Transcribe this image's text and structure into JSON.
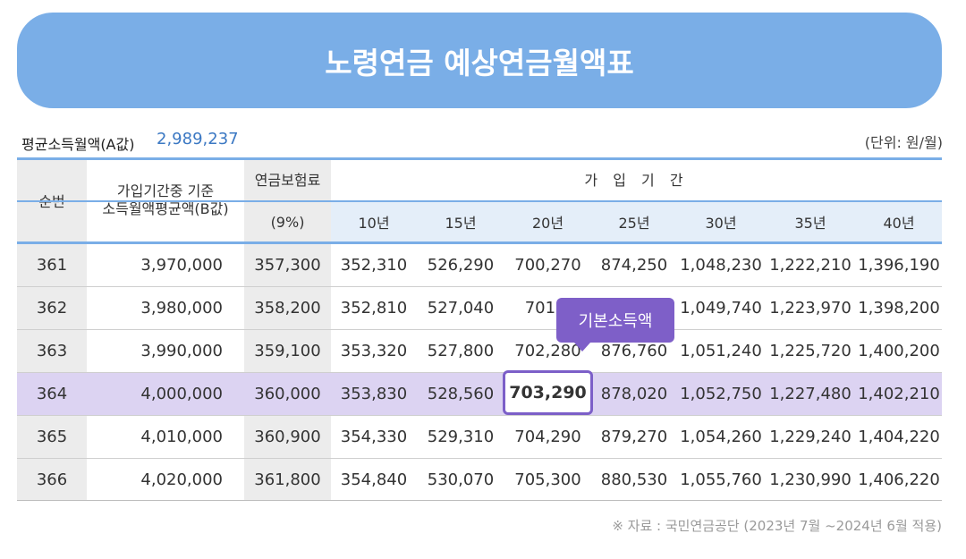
{
  "title": "노령연금 예상연금월액표",
  "avg_income": {
    "label": "평균소득월액(A값)",
    "value": "2,989,237"
  },
  "unit": "(단위: 원/월)",
  "headers": {
    "seq": "순번",
    "base_line1": "가입기간중 기준",
    "base_line2": "소득월액평균액(B값)",
    "premium": "연금보험료",
    "premium_rate": "(9%)",
    "period": "가 입 기 간",
    "years": [
      "10년",
      "15년",
      "20년",
      "25년",
      "30년",
      "35년",
      "40년"
    ]
  },
  "rows": [
    {
      "seq": "361",
      "base": "3,970,000",
      "premium": "357,300",
      "values": [
        "352,310",
        "526,290",
        "700,270",
        "874,250",
        "1,048,230",
        "1,222,210",
        "1,396,190"
      ]
    },
    {
      "seq": "362",
      "base": "3,980,000",
      "premium": "358,200",
      "values": [
        "352,810",
        "527,040",
        "701,2",
        "",
        "1,049,740",
        "1,223,970",
        "1,398,200"
      ]
    },
    {
      "seq": "363",
      "base": "3,990,000",
      "premium": "359,100",
      "values": [
        "353,320",
        "527,800",
        "702,280",
        "876,760",
        "1,051,240",
        "1,225,720",
        "1,400,200"
      ]
    },
    {
      "seq": "364",
      "base": "4,000,000",
      "premium": "360,000",
      "values": [
        "353,830",
        "528,560",
        "703,290",
        "878,020",
        "1,052,750",
        "1,227,480",
        "1,402,210"
      ]
    },
    {
      "seq": "365",
      "base": "4,010,000",
      "premium": "360,900",
      "values": [
        "354,330",
        "529,310",
        "704,290",
        "879,270",
        "1,054,260",
        "1,229,240",
        "1,404,220"
      ]
    },
    {
      "seq": "366",
      "base": "4,020,000",
      "premium": "361,800",
      "values": [
        "354,840",
        "530,070",
        "705,300",
        "880,530",
        "1,055,760",
        "1,230,990",
        "1,406,220"
      ]
    }
  ],
  "highlight_row": 3,
  "highlight_col": 2,
  "tooltip": "기본소득액",
  "source": "※ 자료 : 국민연금공단 (2023년 7월 ~2024년 6월 적용)",
  "colors": {
    "banner": "#7aaee7",
    "highlight_row": "#dcd3f2",
    "accent": "#7c5fc8",
    "header_blue": "#e4eef9"
  }
}
